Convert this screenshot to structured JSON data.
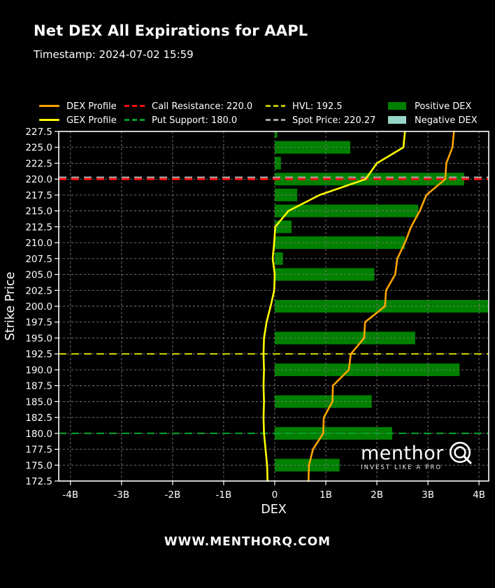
{
  "header": {
    "title": "Net DEX All Expirations for AAPL",
    "timestamp": "Timestamp: 2024-07-02 15:59"
  },
  "legend": {
    "dex_profile": {
      "label": "DEX Profile",
      "color": "#FFA500",
      "style": "solid-line"
    },
    "gex_profile": {
      "label": "GEX Profile",
      "color": "#FFFF00",
      "style": "solid-line"
    },
    "call_resistance": {
      "label": "Call Resistance: 220.0",
      "color": "#FF1010",
      "style": "dashed-line"
    },
    "put_support": {
      "label": "Put Support: 180.0",
      "color": "#00A02E",
      "style": "dashed-line"
    },
    "hvl": {
      "label": "HVL: 192.5",
      "color": "#C2C200",
      "style": "dashed-line"
    },
    "spot_price": {
      "label": "Spot Price: 220.27",
      "color": "#A3A3A3",
      "style": "dashed-line"
    },
    "positive_dex": {
      "label": "Positive DEX",
      "color": "#008000",
      "style": "patch"
    },
    "negative_dex": {
      "label": "Negative DEX",
      "color": "#96D7C8",
      "style": "patch"
    }
  },
  "chart_data": {
    "type": "bar",
    "orientation": "horizontal",
    "title": "Net DEX All Expirations for AAPL",
    "xlabel": "DEX",
    "ylabel": "Strike Price",
    "xlim": [
      -4.23,
      4.19
    ],
    "ylim": [
      172.5,
      227.5
    ],
    "x_ticks": [
      "-4B",
      "-3B",
      "-2B",
      "-1B",
      "0",
      "1B",
      "2B",
      "3B",
      "4B"
    ],
    "x_tick_values": [
      -4,
      -3,
      -2,
      -1,
      0,
      1,
      2,
      3,
      4
    ],
    "strikes": [
      227.5,
      225.0,
      222.5,
      220.0,
      217.5,
      215.0,
      212.5,
      210.0,
      207.5,
      205.0,
      202.5,
      200.0,
      197.5,
      195.0,
      192.5,
      190.0,
      187.5,
      185.0,
      182.5,
      180.0,
      177.5,
      175.0,
      172.5
    ],
    "net_dex_bars_B": [
      0.05,
      1.48,
      0.12,
      3.71,
      0.44,
      2.81,
      0.33,
      2.55,
      0.16,
      1.95,
      0,
      4.18,
      0,
      2.75,
      0,
      3.62,
      0,
      1.9,
      0,
      2.3,
      0,
      1.27,
      0
    ],
    "dex_profile_B": [
      3.51,
      3.48,
      3.36,
      3.34,
      2.97,
      2.84,
      2.67,
      2.55,
      2.4,
      2.36,
      2.18,
      2.16,
      1.77,
      1.75,
      1.49,
      1.45,
      1.14,
      1.13,
      0.96,
      0.95,
      0.75,
      0.67,
      0.66
    ],
    "gex_profile_B": [
      2.55,
      2.52,
      2.0,
      1.78,
      0.88,
      0.27,
      0.01,
      -0.01,
      -0.04,
      0.0,
      -0.01,
      -0.08,
      -0.16,
      -0.21,
      -0.22,
      -0.21,
      -0.22,
      -0.21,
      -0.22,
      -0.21,
      -0.18,
      -0.15,
      -0.14
    ],
    "levels": {
      "call_resistance": 220.0,
      "put_support": 180.0,
      "hvl": 192.5,
      "spot_price": 220.27
    },
    "colors": {
      "positive": "#008000",
      "negative": "#96D7C8",
      "dex_line": "#FFA500",
      "gex_line": "#FFFF00"
    },
    "grid": true,
    "legend_position": "top"
  },
  "watermark": {
    "brand": "menthor",
    "tagline": "INVEST LIKE A PRO"
  },
  "footer": {
    "website": "WWW.MENTHORQ.COM"
  }
}
